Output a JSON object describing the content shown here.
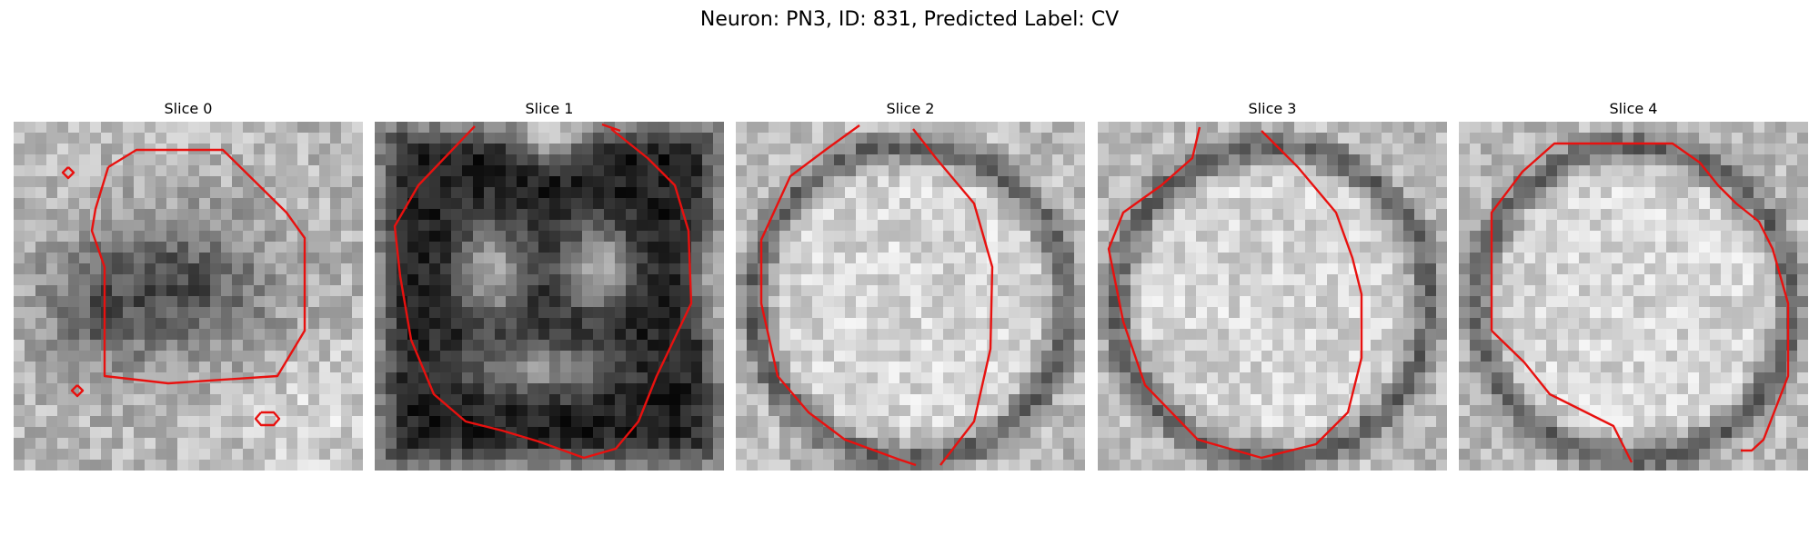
{
  "figure": {
    "title": "Neuron: PN3, ID: 831, Predicted Label: CV"
  },
  "colors": {
    "contour": "#e8110f",
    "background": "#ffffff"
  },
  "grid_size": 32,
  "slices": [
    {
      "title": "Slice 0",
      "pattern": "dark-blob"
    },
    {
      "title": "Slice 1",
      "pattern": "dark-ring-with-bright-lobes"
    },
    {
      "title": "Slice 2",
      "pattern": "bright-disc"
    },
    {
      "title": "Slice 3",
      "pattern": "bright-disc"
    },
    {
      "title": "Slice 4",
      "pattern": "bright-disc"
    }
  ]
}
